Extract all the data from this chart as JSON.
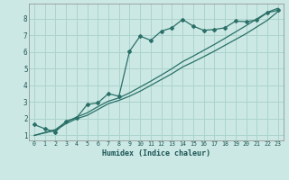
{
  "xlabel": "Humidex (Indice chaleur)",
  "bg_color": "#cce8e4",
  "grid_color": "#aad4cc",
  "line_color": "#2a7068",
  "xlim": [
    -0.5,
    23.5
  ],
  "ylim": [
    0.7,
    8.9
  ],
  "xticks": [
    0,
    1,
    2,
    3,
    4,
    5,
    6,
    7,
    8,
    9,
    10,
    11,
    12,
    13,
    14,
    15,
    16,
    17,
    18,
    19,
    20,
    21,
    22,
    23
  ],
  "yticks": [
    1,
    2,
    3,
    4,
    5,
    6,
    7,
    8
  ],
  "curve1_x": [
    0,
    1,
    2,
    3,
    4,
    5,
    6,
    7,
    8,
    9,
    10,
    11,
    12,
    13,
    14,
    15,
    16,
    17,
    18,
    19,
    20,
    21,
    22,
    23
  ],
  "curve1_y": [
    1.65,
    1.4,
    1.2,
    1.85,
    2.05,
    2.85,
    2.95,
    3.5,
    3.35,
    6.05,
    6.95,
    6.7,
    7.25,
    7.45,
    7.95,
    7.55,
    7.3,
    7.35,
    7.45,
    7.85,
    7.82,
    7.92,
    8.35,
    8.5
  ],
  "curve2_x": [
    0,
    2,
    3,
    4,
    5,
    6,
    7,
    8,
    9,
    10,
    11,
    12,
    13,
    14,
    15,
    16,
    17,
    18,
    19,
    20,
    21,
    22,
    23
  ],
  "curve2_y": [
    1.0,
    1.3,
    1.7,
    2.0,
    2.2,
    2.55,
    2.9,
    3.1,
    3.35,
    3.65,
    4.0,
    4.35,
    4.7,
    5.1,
    5.4,
    5.72,
    6.05,
    6.4,
    6.75,
    7.1,
    7.5,
    7.9,
    8.42
  ],
  "curve3_x": [
    0,
    2,
    3,
    4,
    5,
    6,
    7,
    8,
    9,
    10,
    11,
    12,
    13,
    14,
    15,
    16,
    17,
    18,
    19,
    20,
    21,
    22,
    23
  ],
  "curve3_y": [
    1.0,
    1.35,
    1.8,
    2.1,
    2.35,
    2.72,
    3.05,
    3.25,
    3.55,
    3.9,
    4.25,
    4.62,
    5.0,
    5.42,
    5.75,
    6.1,
    6.45,
    6.82,
    7.2,
    7.58,
    7.98,
    8.38,
    8.62
  ]
}
